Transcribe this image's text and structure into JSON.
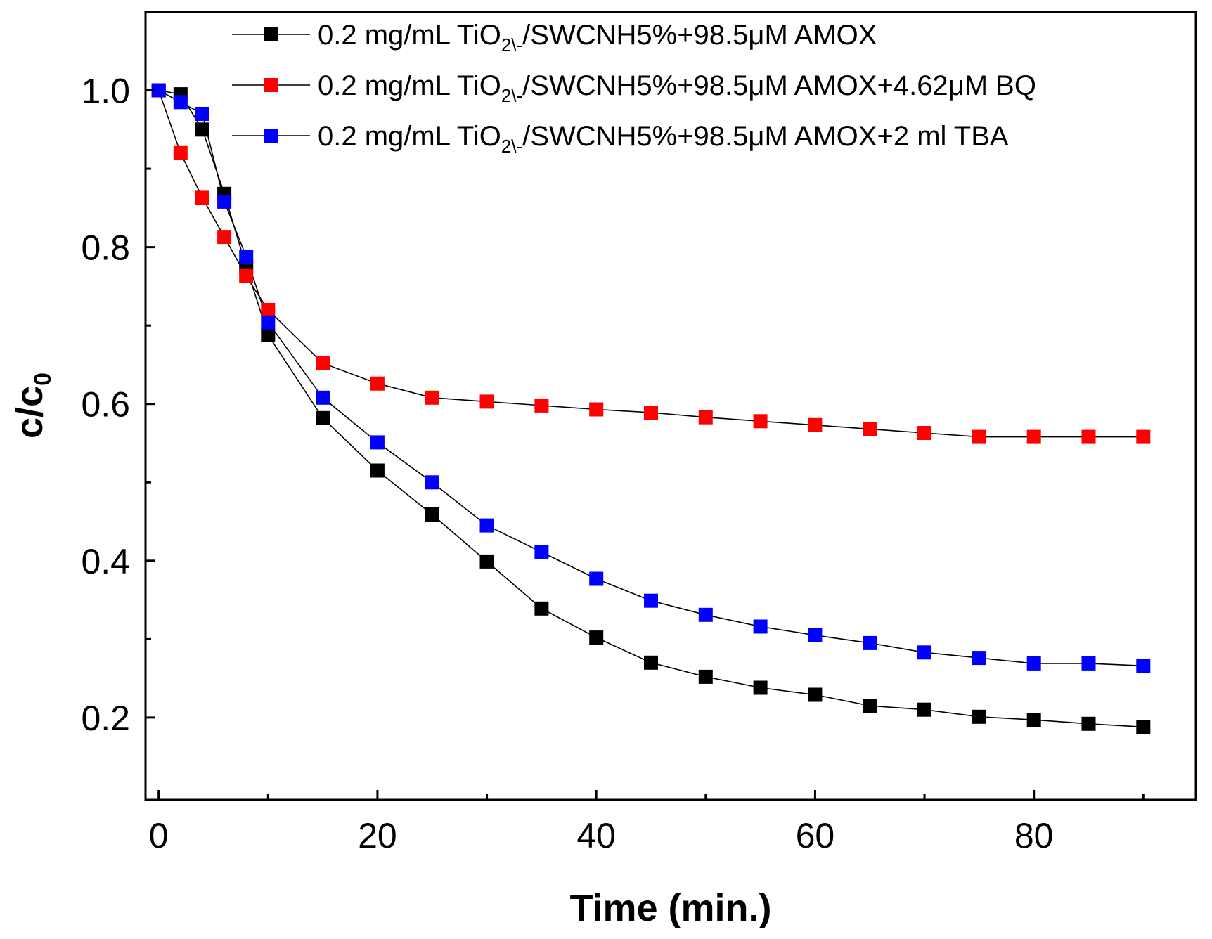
{
  "chart_data": {
    "type": "line",
    "xlabel": "Time (min.)",
    "ylabel": {
      "base": "c/c",
      "subscript": "0"
    },
    "xlim": [
      -1.2,
      94.8
    ],
    "ylim": [
      0.095,
      1.1
    ],
    "x_ticks": [
      {
        "value": 0,
        "label": "0"
      },
      {
        "value": 20,
        "label": "20"
      },
      {
        "value": 40,
        "label": "40"
      },
      {
        "value": 60,
        "label": "60"
      },
      {
        "value": 80,
        "label": "80"
      }
    ],
    "y_ticks": [
      {
        "value": 0.2,
        "label": "0.2"
      },
      {
        "value": 0.4,
        "label": "0.4"
      },
      {
        "value": 0.6,
        "label": "0.6"
      },
      {
        "value": 0.8,
        "label": "0.8"
      },
      {
        "value": 1.0,
        "label": "1.0"
      }
    ],
    "x_minor_ticks": [
      10,
      30,
      50,
      70,
      90
    ],
    "y_minor_ticks": [
      0.3,
      0.5,
      0.7,
      0.9
    ],
    "grid": false,
    "legend_position": "top",
    "series": [
      {
        "name": "0.2 mg/mL TiO2\\-/SWCNH5%+98.5μM AMOX",
        "legend": {
          "prefix": "0.2 mg/mL TiO",
          "subscript": "2\\-",
          "suffix": "/SWCNH5%+98.5μM AMOX"
        },
        "color": "#000000",
        "x": [
          0,
          2,
          4,
          6,
          8,
          10,
          15,
          20,
          25,
          30,
          35,
          40,
          45,
          50,
          55,
          60,
          65,
          70,
          75,
          80,
          85,
          90
        ],
        "values": [
          1.0,
          0.995,
          0.95,
          0.868,
          0.775,
          0.688,
          0.582,
          0.515,
          0.459,
          0.399,
          0.339,
          0.302,
          0.27,
          0.252,
          0.238,
          0.229,
          0.215,
          0.21,
          0.201,
          0.197,
          0.192,
          0.188
        ]
      },
      {
        "name": "0.2 mg/mL TiO2\\-/SWCNH5%+98.5μM AMOX+4.62μM BQ",
        "legend": {
          "prefix": "0.2 mg/mL TiO",
          "subscript": "2\\-",
          "suffix": "/SWCNH5%+98.5μM AMOX+4.62μM BQ"
        },
        "color": "#ff0000",
        "x": [
          0,
          2,
          4,
          6,
          8,
          10,
          15,
          20,
          25,
          30,
          35,
          40,
          45,
          50,
          55,
          60,
          65,
          70,
          75,
          80,
          85,
          90
        ],
        "values": [
          1.0,
          0.92,
          0.863,
          0.813,
          0.763,
          0.72,
          0.652,
          0.626,
          0.608,
          0.603,
          0.598,
          0.593,
          0.589,
          0.583,
          0.578,
          0.573,
          0.568,
          0.563,
          0.558,
          0.558,
          0.558,
          0.558
        ]
      },
      {
        "name": "0.2 mg/mL TiO2\\-/SWCNH5%+98.5μM AMOX+2 ml TBA",
        "legend": {
          "prefix": "0.2 mg/mL TiO",
          "subscript": "2\\-",
          "suffix": "/SWCNH5%+98.5μM AMOX+2 ml TBA"
        },
        "color": "#0000ff",
        "x": [
          0,
          2,
          4,
          6,
          8,
          10,
          15,
          20,
          25,
          30,
          35,
          40,
          45,
          50,
          55,
          60,
          65,
          70,
          75,
          80,
          85,
          90
        ],
        "values": [
          1.0,
          0.985,
          0.97,
          0.858,
          0.788,
          0.704,
          0.608,
          0.551,
          0.5,
          0.445,
          0.411,
          0.377,
          0.349,
          0.331,
          0.316,
          0.305,
          0.295,
          0.283,
          0.276,
          0.269,
          0.269,
          0.266
        ]
      }
    ]
  }
}
